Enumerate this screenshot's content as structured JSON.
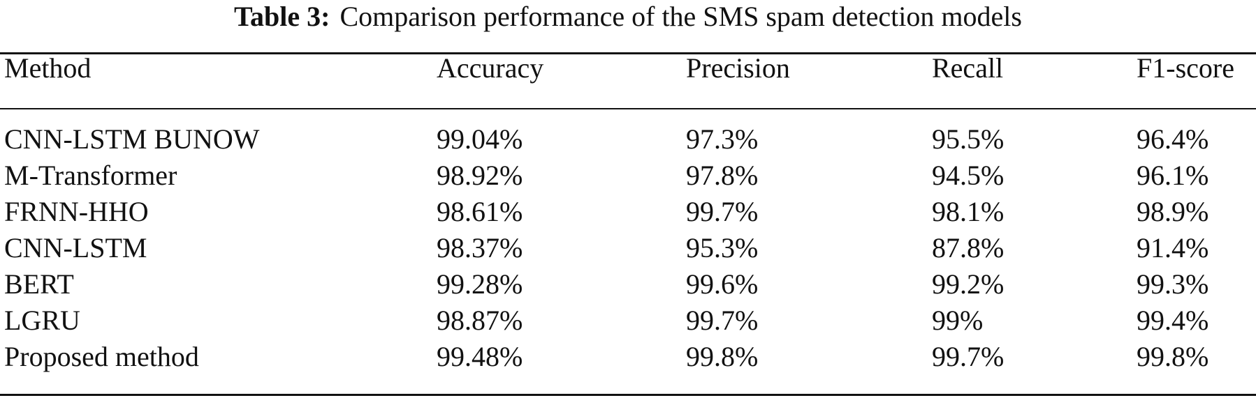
{
  "caption": {
    "label": "Table 3:",
    "text": "Comparison performance of the SMS spam detection models"
  },
  "table": {
    "headers": [
      "Method",
      "Accuracy",
      "Precision",
      "Recall",
      "F1-score"
    ],
    "rows": [
      [
        "CNN-LSTM BUNOW",
        "99.04%",
        "97.3%",
        "95.5%",
        "96.4%"
      ],
      [
        "M-Transformer",
        "98.92%",
        "97.8%",
        "94.5%",
        "96.1%"
      ],
      [
        "FRNN-HHO",
        "98.61%",
        "99.7%",
        "98.1%",
        "98.9%"
      ],
      [
        "CNN-LSTM",
        "98.37%",
        "95.3%",
        "87.8%",
        "91.4%"
      ],
      [
        "BERT",
        "99.28%",
        "99.6%",
        "99.2%",
        "99.3%"
      ],
      [
        "LGRU",
        "98.87%",
        "99.7%",
        "99%",
        "99.4%"
      ],
      [
        "Proposed method",
        "99.48%",
        "99.8%",
        "99.7%",
        "99.8%"
      ]
    ]
  }
}
